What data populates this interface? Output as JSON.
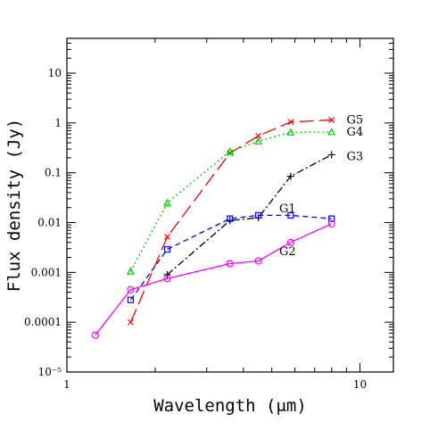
{
  "chart_data": {
    "type": "line",
    "title": "",
    "xlabel": "Wavelength (μm)",
    "ylabel": "Flux density (Jy)",
    "xscale": "log",
    "yscale": "log",
    "xlim": [
      1,
      13
    ],
    "ylim": [
      1e-05,
      50
    ],
    "grid": false,
    "legend": "none",
    "x_ticks": [
      {
        "value": 1,
        "label": "1"
      },
      {
        "value": 10,
        "label": "10"
      }
    ],
    "y_ticks": [
      {
        "value": 1e-05,
        "label": "10⁻⁵"
      },
      {
        "value": 0.0001,
        "label": "0.0001"
      },
      {
        "value": 0.001,
        "label": "0.001"
      },
      {
        "value": 0.01,
        "label": "0.01"
      },
      {
        "value": 0.1,
        "label": "0.1"
      },
      {
        "value": 1,
        "label": "1"
      },
      {
        "value": 10,
        "label": "10"
      }
    ],
    "series": [
      {
        "name": "G5",
        "color": "#ff0000",
        "marker": "cross-x",
        "dash": "long-dash",
        "x": [
          1.65,
          2.2,
          3.6,
          4.5,
          5.8,
          8.0
        ],
        "y": [
          0.0001,
          0.0052,
          0.25,
          0.55,
          1.05,
          1.15
        ]
      },
      {
        "name": "G4",
        "color": "#00cc00",
        "marker": "triangle",
        "dash": "dotted",
        "x": [
          1.65,
          2.2,
          3.6,
          4.5,
          5.8,
          8.0
        ],
        "y": [
          0.00105,
          0.025,
          0.27,
          0.43,
          0.65,
          0.66
        ]
      },
      {
        "name": "G3",
        "color": "#000000",
        "marker": "plus",
        "dash": "dash-dot",
        "x": [
          2.2,
          3.6,
          4.5,
          5.8,
          8.0
        ],
        "y": [
          0.0009,
          0.011,
          0.0125,
          0.085,
          0.23
        ]
      },
      {
        "name": "G1",
        "color": "#0000ff",
        "marker": "square",
        "dash": "dashed",
        "x": [
          1.65,
          2.2,
          3.6,
          4.5,
          5.8,
          8.0
        ],
        "y": [
          0.00028,
          0.0029,
          0.012,
          0.014,
          0.014,
          0.012
        ]
      },
      {
        "name": "G2",
        "color": "#ff00ff",
        "marker": "circle",
        "dash": "solid",
        "x": [
          1.25,
          1.65,
          2.2,
          3.6,
          4.5,
          5.8,
          8.0
        ],
        "y": [
          5.5e-05,
          0.00045,
          0.00075,
          0.0015,
          0.0017,
          0.004,
          0.0095
        ]
      }
    ],
    "series_labels": [
      {
        "series": "G5",
        "x": 9.0,
        "y": 1.15
      },
      {
        "series": "G4",
        "x": 9.0,
        "y": 0.66
      },
      {
        "series": "G3",
        "x": 9.0,
        "y": 0.21
      },
      {
        "series": "G1",
        "x": 5.3,
        "y": 0.019
      },
      {
        "series": "G2",
        "x": 5.3,
        "y": 0.0026
      }
    ]
  }
}
